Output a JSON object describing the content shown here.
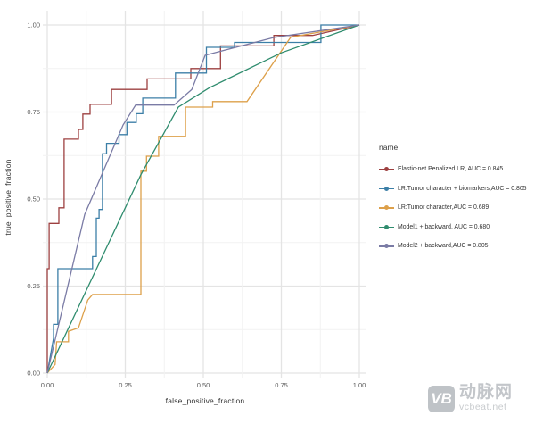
{
  "chart_data": {
    "type": "line",
    "subtype": "roc-step-curves",
    "xlabel": "false_positive_fraction",
    "ylabel": "true_positive_fraction",
    "xlim": [
      0,
      1
    ],
    "ylim": [
      0,
      1
    ],
    "x_ticks": [
      "0.00",
      "0.25",
      "0.50",
      "0.75",
      "1.00"
    ],
    "y_ticks": [
      "0.00",
      "0.25",
      "0.50",
      "0.75",
      "1.00"
    ],
    "grid": "major and minor gridlines, light gray on white panel",
    "legend_position": "right",
    "legend_title": "name",
    "series": [
      {
        "name": "Elastic-net Penalized LR, AUC = 0.845",
        "auc_text": "0.845",
        "color": "#9d4040",
        "points": [
          [
            0,
            0
          ],
          [
            0,
            0.3
          ],
          [
            0.006,
            0.3
          ],
          [
            0.006,
            0.43
          ],
          [
            0.037,
            0.43
          ],
          [
            0.037,
            0.475
          ],
          [
            0.054,
            0.475
          ],
          [
            0.054,
            0.672
          ],
          [
            0.1,
            0.672
          ],
          [
            0.1,
            0.7
          ],
          [
            0.114,
            0.7
          ],
          [
            0.114,
            0.744
          ],
          [
            0.137,
            0.744
          ],
          [
            0.137,
            0.772
          ],
          [
            0.206,
            0.772
          ],
          [
            0.206,
            0.815
          ],
          [
            0.32,
            0.815
          ],
          [
            0.32,
            0.845
          ],
          [
            0.46,
            0.845
          ],
          [
            0.46,
            0.875
          ],
          [
            0.555,
            0.875
          ],
          [
            0.555,
            0.94
          ],
          [
            0.726,
            0.94
          ],
          [
            0.726,
            0.97
          ],
          [
            0.85,
            0.97
          ],
          [
            1,
            1
          ]
        ]
      },
      {
        "name": "LR:Tumor character + biomarkers,AUC = 0.805",
        "auc_text": "0.805",
        "color": "#3c7fa7",
        "points": [
          [
            0,
            0
          ],
          [
            0.02,
            0.1
          ],
          [
            0.02,
            0.14
          ],
          [
            0.034,
            0.14
          ],
          [
            0.034,
            0.3
          ],
          [
            0.145,
            0.3
          ],
          [
            0.145,
            0.335
          ],
          [
            0.157,
            0.335
          ],
          [
            0.157,
            0.445
          ],
          [
            0.166,
            0.445
          ],
          [
            0.166,
            0.47
          ],
          [
            0.177,
            0.47
          ],
          [
            0.177,
            0.63
          ],
          [
            0.19,
            0.63
          ],
          [
            0.19,
            0.66
          ],
          [
            0.23,
            0.66
          ],
          [
            0.23,
            0.685
          ],
          [
            0.255,
            0.685
          ],
          [
            0.255,
            0.72
          ],
          [
            0.285,
            0.72
          ],
          [
            0.285,
            0.745
          ],
          [
            0.306,
            0.745
          ],
          [
            0.306,
            0.79
          ],
          [
            0.411,
            0.79
          ],
          [
            0.411,
            0.862
          ],
          [
            0.51,
            0.862
          ],
          [
            0.51,
            0.936
          ],
          [
            0.6,
            0.936
          ],
          [
            0.6,
            0.95
          ],
          [
            0.877,
            0.95
          ],
          [
            0.877,
            1.0
          ],
          [
            1,
            1
          ]
        ]
      },
      {
        "name": "LR:Tumor character,AUC = 0.689",
        "auc_text": "0.689",
        "color": "#dda04a",
        "points": [
          [
            0,
            0
          ],
          [
            0.025,
            0.025
          ],
          [
            0.03,
            0.09
          ],
          [
            0.068,
            0.09
          ],
          [
            0.068,
            0.12
          ],
          [
            0.1,
            0.13
          ],
          [
            0.13,
            0.21
          ],
          [
            0.145,
            0.226
          ],
          [
            0.3,
            0.226
          ],
          [
            0.3,
            0.58
          ],
          [
            0.318,
            0.58
          ],
          [
            0.318,
            0.623
          ],
          [
            0.357,
            0.623
          ],
          [
            0.357,
            0.68
          ],
          [
            0.443,
            0.68
          ],
          [
            0.443,
            0.764
          ],
          [
            0.53,
            0.764
          ],
          [
            0.53,
            0.78
          ],
          [
            0.64,
            0.78
          ],
          [
            0.78,
            0.965
          ],
          [
            1,
            1
          ]
        ]
      },
      {
        "name": "Model1 + backward, AUC = 0.680",
        "auc_text": "0.680",
        "color": "#2f8c6e",
        "points": [
          [
            0,
            0
          ],
          [
            0.3,
            0.57
          ],
          [
            0.42,
            0.764
          ],
          [
            0.52,
            0.82
          ],
          [
            0.75,
            0.92
          ],
          [
            1,
            1
          ]
        ]
      },
      {
        "name": "Model2 + backward,AUC = 0.805",
        "auc_text": "0.805",
        "color": "#7a7ba5",
        "points": [
          [
            0,
            0
          ],
          [
            0.12,
            0.456
          ],
          [
            0.243,
            0.713
          ],
          [
            0.283,
            0.77
          ],
          [
            0.406,
            0.77
          ],
          [
            0.463,
            0.815
          ],
          [
            0.506,
            0.913
          ],
          [
            0.726,
            0.964
          ],
          [
            1,
            1
          ]
        ]
      }
    ]
  },
  "watermark": {
    "logo": "VB",
    "brand": "动脉网",
    "site": "vcbeat.net"
  }
}
